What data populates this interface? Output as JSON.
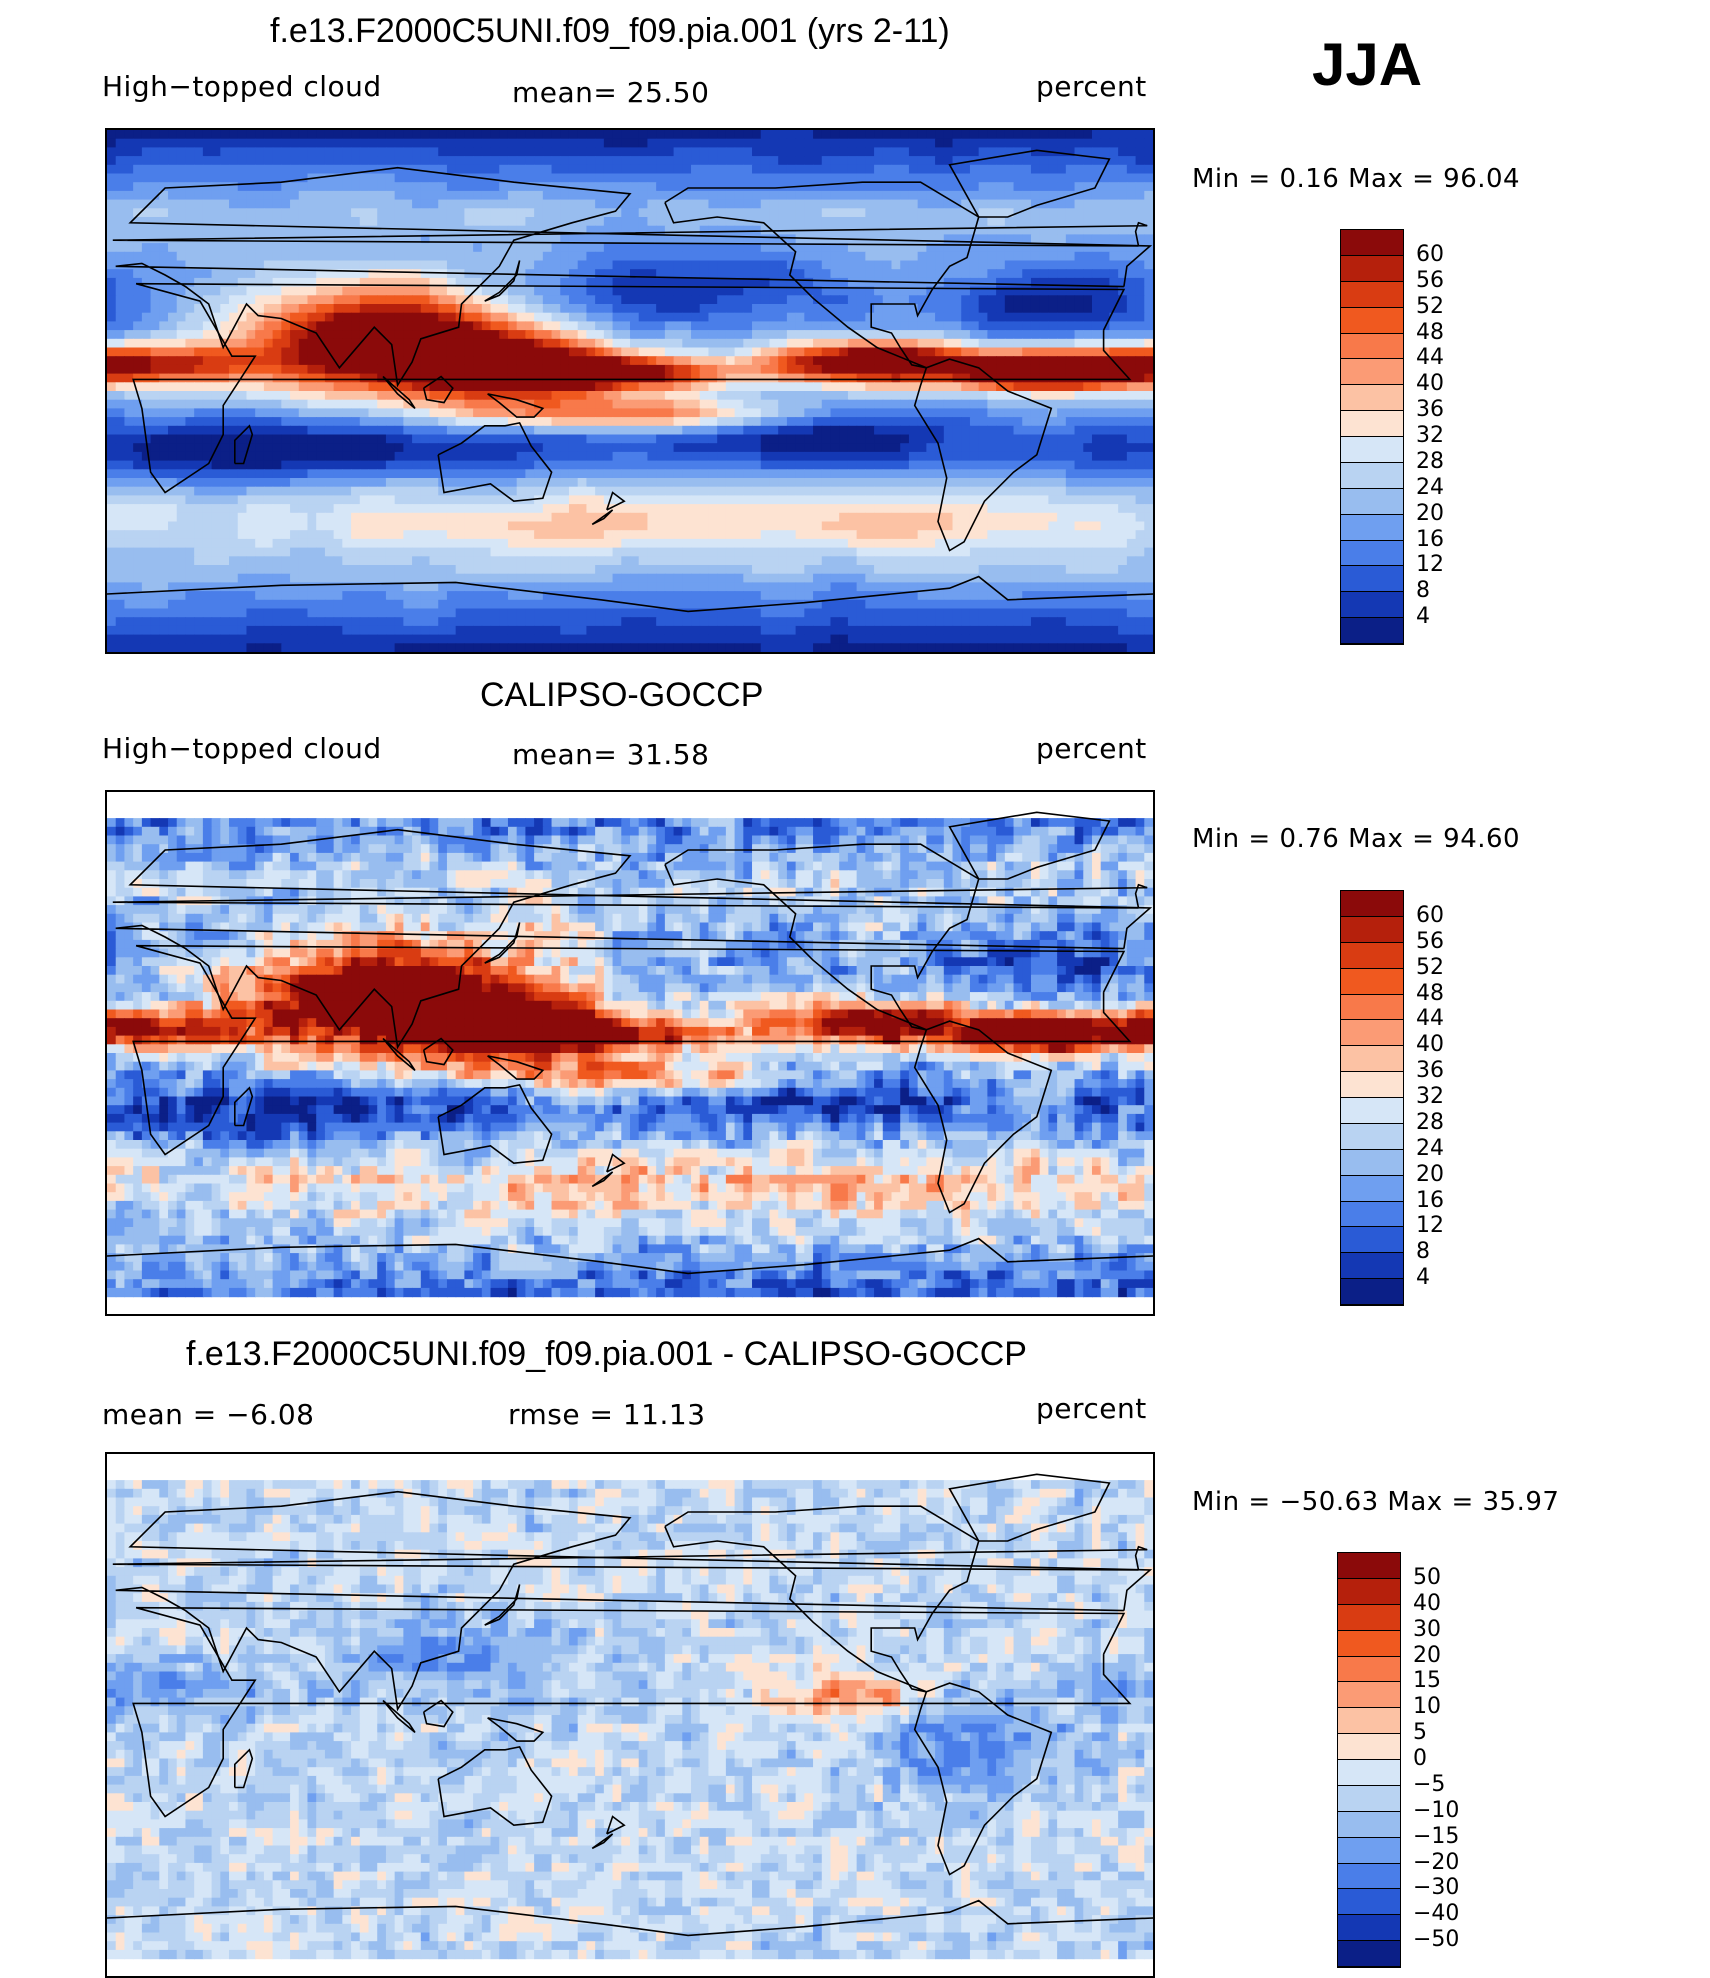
{
  "season": "JJA",
  "panels": [
    {
      "title": "f.e13.F2000C5UNI.f09_f09.pia.001 (yrs 2-11)",
      "left_label": "High−topped cloud",
      "center_label": "mean=   25.50",
      "right_label": "percent",
      "minmax": "Min  =    0.16  Max  =    96.04",
      "colorbar": {
        "labels": [
          "60",
          "56",
          "52",
          "48",
          "44",
          "40",
          "36",
          "32",
          "28",
          "24",
          "20",
          "16",
          "12",
          "8",
          "4"
        ],
        "colors": [
          "#8b0a0a",
          "#b5200c",
          "#d93c12",
          "#f0591f",
          "#f8794a",
          "#fb9b75",
          "#fcc2a4",
          "#fde3d2",
          "#d6e6f7",
          "#b9d3f2",
          "#98bdef",
          "#6f9ff0",
          "#4a7ee9",
          "#2a5bd6",
          "#1438b4",
          "#0b1f87"
        ],
        "labels_align": "interior"
      },
      "field": "model"
    },
    {
      "title": "CALIPSO-GOCCP",
      "left_label": "High−topped cloud",
      "center_label": "mean=   31.58",
      "right_label": "percent",
      "minmax": "Min  =    0.76  Max  =    94.60",
      "colorbar": {
        "labels": [
          "60",
          "56",
          "52",
          "48",
          "44",
          "40",
          "36",
          "32",
          "28",
          "24",
          "20",
          "16",
          "12",
          "8",
          "4"
        ],
        "colors": [
          "#8b0a0a",
          "#b5200c",
          "#d93c12",
          "#f0591f",
          "#f8794a",
          "#fb9b75",
          "#fcc2a4",
          "#fde3d2",
          "#d6e6f7",
          "#b9d3f2",
          "#98bdef",
          "#6f9ff0",
          "#4a7ee9",
          "#2a5bd6",
          "#1438b4",
          "#0b1f87"
        ],
        "labels_align": "interior"
      },
      "field": "obs"
    },
    {
      "title": "f.e13.F2000C5UNI.f09_f09.pia.001 - CALIPSO-GOCCP",
      "left_label": "mean  =    −6.08",
      "center_label": "rmse  =    11.13",
      "right_label": "percent",
      "minmax": "Min  = −50.63  Max  =    35.97",
      "colorbar": {
        "labels": [
          "50",
          "40",
          "30",
          "20",
          "15",
          "10",
          "5",
          "0",
          "−5",
          "−10",
          "−15",
          "−20",
          "−30",
          "−40",
          "−50"
        ],
        "colors": [
          "#8b0a0a",
          "#b5200c",
          "#d93c12",
          "#f0591f",
          "#f8794a",
          "#fb9b75",
          "#fcc2a4",
          "#fde3d2",
          "#d6e6f7",
          "#b9d3f2",
          "#98bdef",
          "#6f9ff0",
          "#4a7ee9",
          "#2a5bd6",
          "#1438b4",
          "#0b1f87"
        ],
        "labels_align": "interior"
      },
      "field": "diff"
    }
  ]
}
